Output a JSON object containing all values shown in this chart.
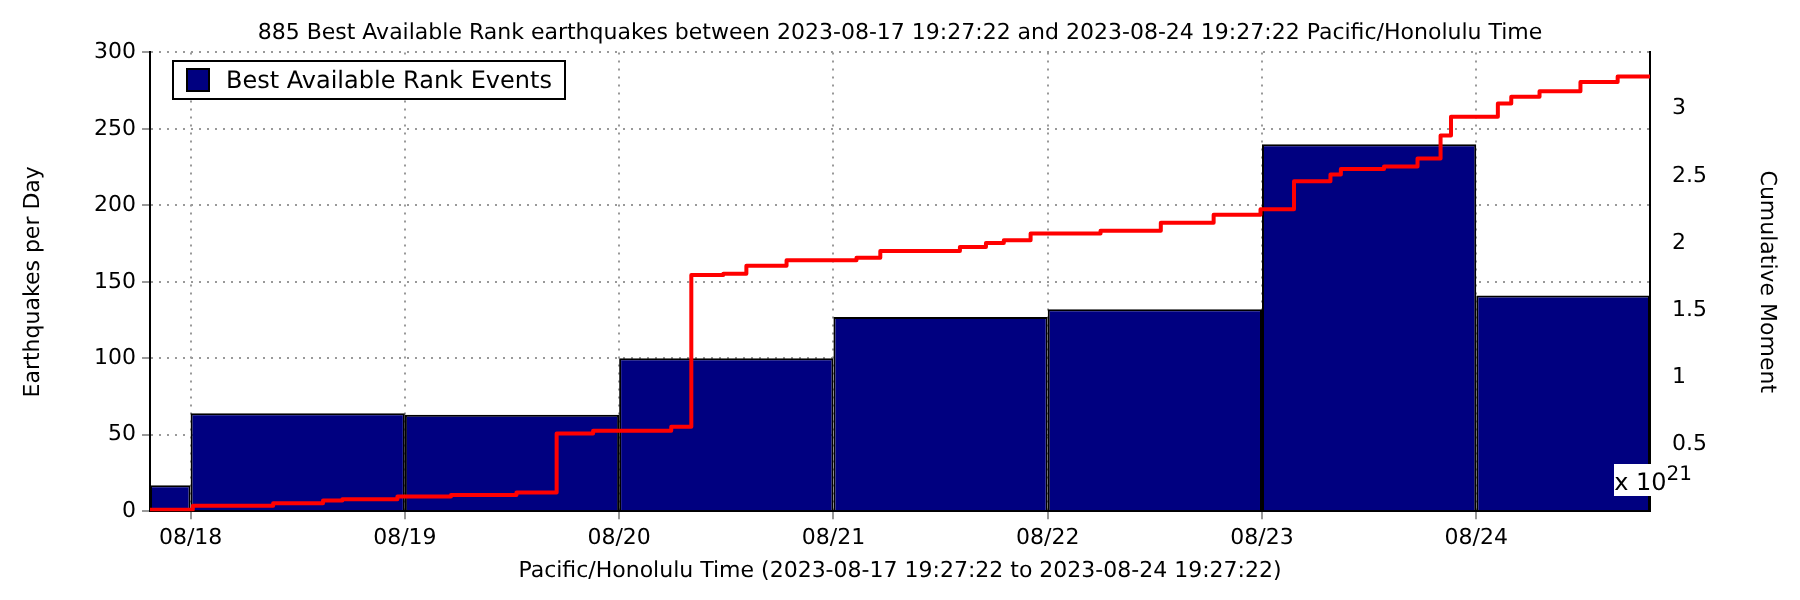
{
  "chart_data": {
    "type": "histogram",
    "title": "885 Best Available Rank earthquakes between 2023-08-17 19:27:22 and 2023-08-24 19:27:22 Pacific/Honolulu Time",
    "xlabel": "Pacific/Honolulu Time (2023-08-17 19:27:22 to 2023-08-24 19:27:22)",
    "ylabel": "Earthquakes per Day",
    "y2label": "Cumulative Moment",
    "annotations": [
      "x 10$^{21}$"
    ],
    "series": [
      {
        "name": "Best Available Rank Events",
        "color": "#000080",
        "bins": [
          "2023-08-17T19:27:22",
          "2023-08-18",
          "2023-08-19",
          "2023-08-20",
          "2023-08-21",
          "2023-08-22",
          "2023-08-23",
          "2023-08-24",
          "2023-08-24T19:27:22"
        ],
        "values": [
          17,
          64,
          63,
          100,
          127,
          132,
          240,
          141
        ]
      },
      {
        "type": "step",
        "axis": "y2",
        "color": "#ff0000",
        "x": [
          "2023-08-17T19:27:22",
          "2023-08-18T00:15",
          "2023-08-18T09:15",
          "2023-08-18T14:50",
          "2023-08-18T17:00",
          "2023-08-18T23:10",
          "2023-08-19T05:10",
          "2023-08-19T12:30",
          "2023-08-19T17:00",
          "2023-08-19T21:05",
          "2023-08-20T05:50",
          "2023-08-20T08:05",
          "2023-08-20T11:40",
          "2023-08-20T14:15",
          "2023-08-20T18:45",
          "2023-08-21T02:35",
          "2023-08-21T05:15",
          "2023-08-21T14:10",
          "2023-08-21T17:05",
          "2023-08-21T19:05",
          "2023-08-21T22:05",
          "2023-08-22T05:55",
          "2023-08-22T12:40",
          "2023-08-22T18:35",
          "2023-08-22T23:50",
          "2023-08-23T03:35",
          "2023-08-23T07:40",
          "2023-08-23T08:50",
          "2023-08-23T13:40",
          "2023-08-23T17:25",
          "2023-08-23T20:00",
          "2023-08-23T21:10",
          "2023-08-24T02:25",
          "2023-08-24T03:55",
          "2023-08-24T07:05",
          "2023-08-24T11:40",
          "2023-08-24T15:50",
          "2023-08-24T17:45",
          "2023-08-24T19:27:22"
        ],
        "values": [
          0,
          0.01,
          0.04,
          0.06,
          0.08,
          0.09,
          0.11,
          0.12,
          0.14,
          0.58,
          0.6,
          0.63,
          1.76,
          1.77,
          1.83,
          1.87,
          1.89,
          1.94,
          1.97,
          2.0,
          2.02,
          2.07,
          2.09,
          2.15,
          2.21,
          2.25,
          2.46,
          2.51,
          2.55,
          2.57,
          2.63,
          2.8,
          2.94,
          3.04,
          3.09,
          3.13,
          3.2,
          3.24,
          3.24
        ]
      }
    ],
    "xlim": [
      "2023-08-17T19:27:22",
      "2023-08-24T19:27:22"
    ],
    "xticks": [
      {
        "value": "2023-08-18",
        "label": "08/18"
      },
      {
        "value": "2023-08-19",
        "label": "08/19"
      },
      {
        "value": "2023-08-20",
        "label": "08/20"
      },
      {
        "value": "2023-08-21",
        "label": "08/21"
      },
      {
        "value": "2023-08-22",
        "label": "08/22"
      },
      {
        "value": "2023-08-23",
        "label": "08/23"
      },
      {
        "value": "2023-08-24",
        "label": "08/24"
      }
    ],
    "ylim": [
      0,
      300
    ],
    "yticks": [
      0,
      50,
      100,
      150,
      200,
      250,
      300
    ],
    "y2lim": [
      0,
      3.42
    ],
    "y2ticks": [
      0.5,
      1,
      1.5,
      2,
      2.5,
      3
    ],
    "grid": true,
    "legend": "top left"
  }
}
